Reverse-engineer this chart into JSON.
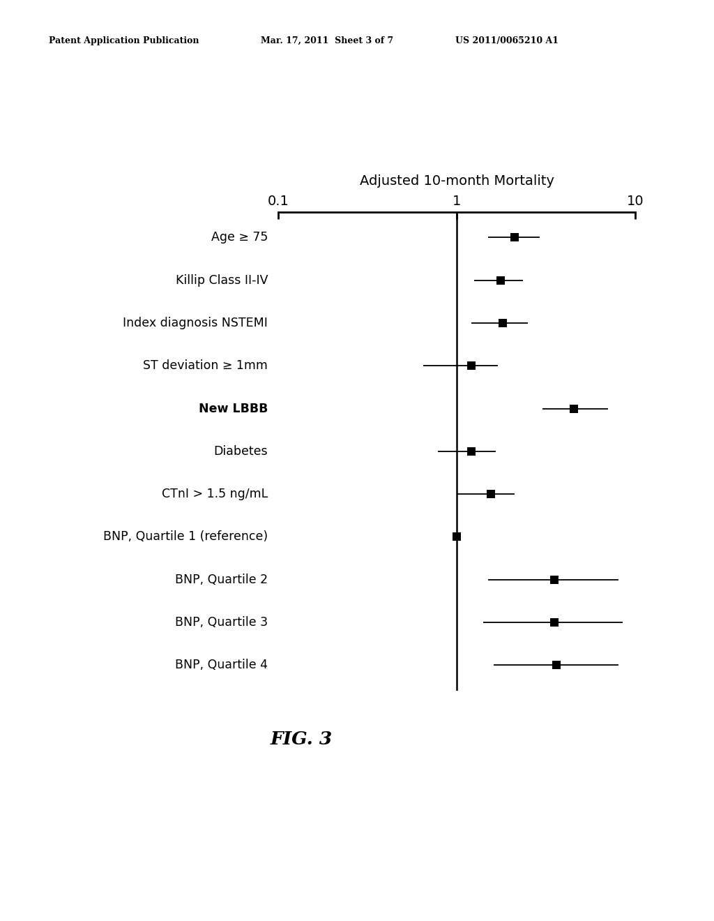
{
  "title": "Adjusted 10-month Mortality",
  "fig_label": "FIG. 3",
  "header_left": "Patent Application Publication",
  "header_mid": "Mar. 17, 2011  Sheet 3 of 7",
  "header_right": "US 2011/0065210 A1",
  "x_ticks": [
    0.1,
    1,
    10
  ],
  "x_tick_labels": [
    "0.1",
    "1",
    "10"
  ],
  "rows": [
    {
      "label": "Age ≥ 75",
      "estimate": 2.1,
      "ci_low": 1.5,
      "ci_high": 2.9,
      "bold": false
    },
    {
      "label": "Killip Class II-IV",
      "estimate": 1.75,
      "ci_low": 1.25,
      "ci_high": 2.35,
      "bold": false
    },
    {
      "label": "Index diagnosis NSTEMI",
      "estimate": 1.8,
      "ci_low": 1.2,
      "ci_high": 2.5,
      "bold": false
    },
    {
      "label": "ST deviation ≥ 1mm",
      "estimate": 1.2,
      "ci_low": 0.65,
      "ci_high": 1.7,
      "bold": false
    },
    {
      "label": "New LBBB",
      "estimate": 4.5,
      "ci_low": 3.0,
      "ci_high": 7.0,
      "bold": true
    },
    {
      "label": "Diabetes",
      "estimate": 1.2,
      "ci_low": 0.78,
      "ci_high": 1.65,
      "bold": false
    },
    {
      "label": "CTnI > 1.5 ng/mL",
      "estimate": 1.55,
      "ci_low": 1.0,
      "ci_high": 2.1,
      "bold": false
    },
    {
      "label": "BNP, Quartile 1 (reference)",
      "estimate": 1.0,
      "ci_low": 1.0,
      "ci_high": 1.0,
      "bold": false
    },
    {
      "label": "BNP, Quartile 2",
      "estimate": 3.5,
      "ci_low": 1.5,
      "ci_high": 8.0,
      "bold": false
    },
    {
      "label": "BNP, Quartile 3",
      "estimate": 3.5,
      "ci_low": 1.4,
      "ci_high": 8.5,
      "bold": false
    },
    {
      "label": "BNP, Quartile 4",
      "estimate": 3.6,
      "ci_low": 1.6,
      "ci_high": 8.0,
      "bold": false
    }
  ],
  "bg_color": "#ffffff",
  "fg_color": "#000000",
  "marker_size": 8,
  "line_width": 1.3
}
